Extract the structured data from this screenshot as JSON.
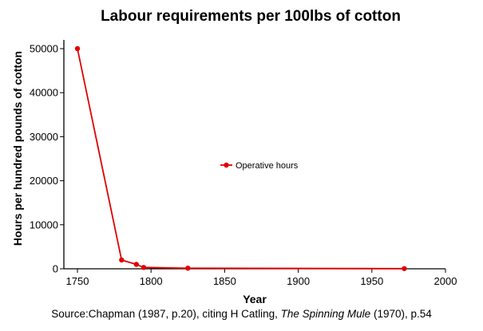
{
  "chart_data": {
    "type": "line",
    "title": "Labour requirements per 100lbs of cotton",
    "xlabel": "Year",
    "ylabel": "Hours per hundred pounds of cotton",
    "xlim": [
      1750,
      2000
    ],
    "ylim": [
      0,
      50000
    ],
    "x_ticks": [
      "1750",
      "1800",
      "1850",
      "1900",
      "1950",
      "2000"
    ],
    "y_ticks": [
      "0",
      "10000",
      "20000",
      "30000",
      "40000",
      "50000"
    ],
    "grid": false,
    "legend_position": "center",
    "series": [
      {
        "name": "Operative hours",
        "color": "#e00000",
        "x": [
          1750,
          1780,
          1790,
          1795,
          1825,
          1972
        ],
        "y": [
          50000,
          2000,
          1000,
          300,
          135,
          40
        ]
      }
    ]
  },
  "source": {
    "prefix": "Source:Chapman (1987, p.20), citing H Catling, ",
    "italic": "The Spinning Mule",
    "suffix": " (1970), p.54"
  }
}
